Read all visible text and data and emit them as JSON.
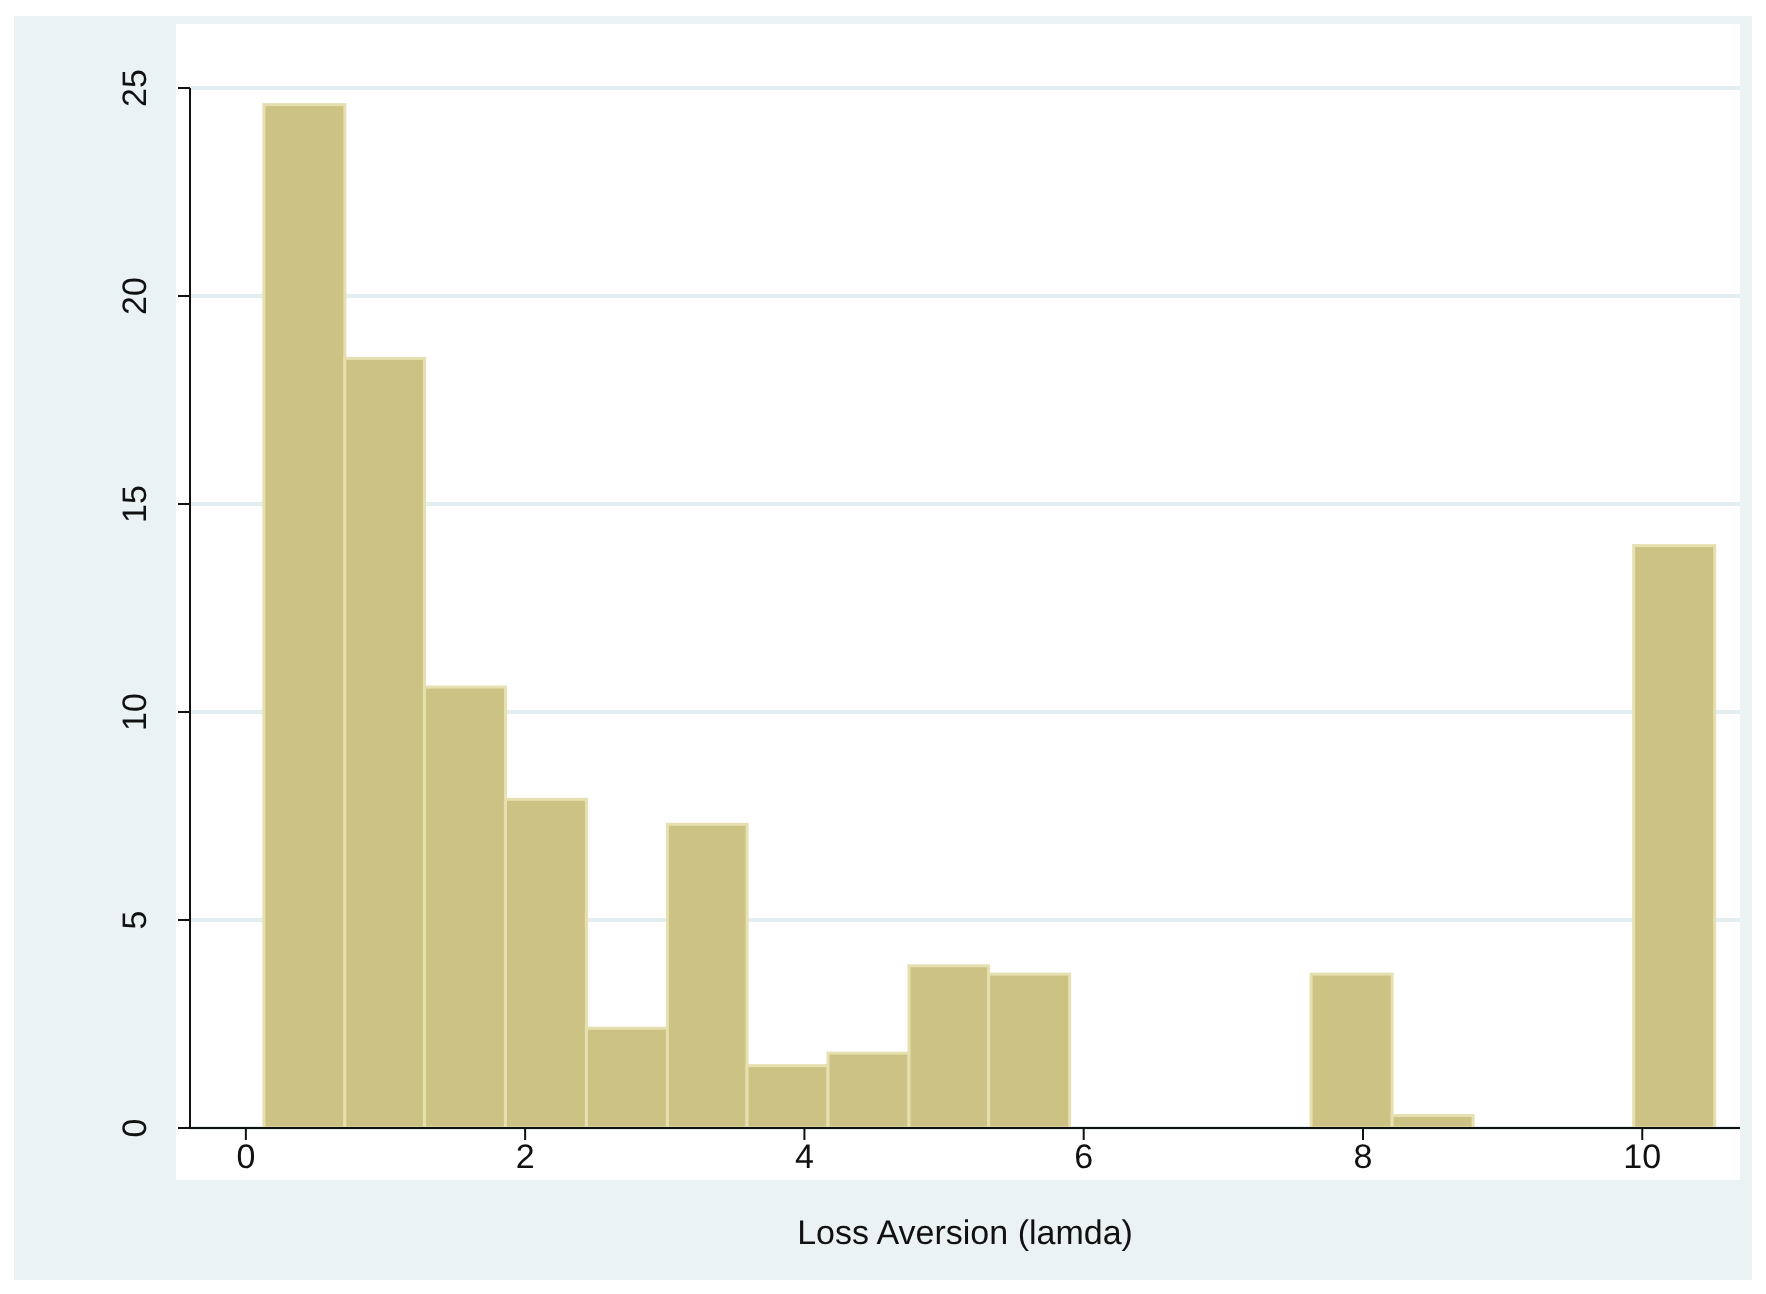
{
  "chart_data": {
    "type": "histogram",
    "xlabel": "Loss Aversion (lamda)",
    "bins": [
      0.13,
      0.71,
      1.28,
      1.86,
      2.44,
      3.02,
      3.59,
      4.17,
      4.75,
      5.32,
      5.9,
      7.63,
      8.21,
      8.79,
      9.94,
      10.52
    ],
    "values": [
      24.6,
      18.5,
      10.6,
      7.9,
      2.4,
      7.3,
      1.5,
      1.8,
      3.9,
      3.7,
      0,
      3.7,
      0.3,
      0,
      14.0
    ],
    "color": "#ccc283",
    "xlim": [
      -0.4,
      10.7
    ],
    "xticks": [
      0,
      2,
      4,
      6,
      8,
      10
    ],
    "ylim": [
      0,
      25
    ],
    "yticks": [
      0,
      5,
      10,
      15,
      20,
      25
    ],
    "grid": "y"
  }
}
